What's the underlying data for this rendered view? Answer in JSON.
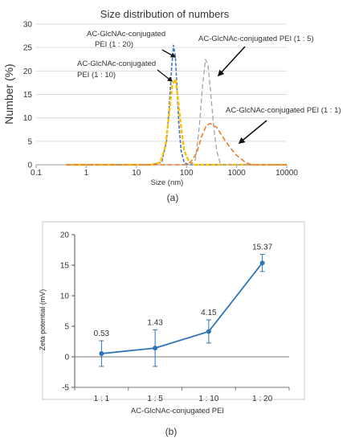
{
  "chart_data": [
    {
      "type": "line",
      "title": "Size distribution of  numbers",
      "xlabel": "Size (nm)",
      "ylabel": "Number (%)",
      "x_scale": "log",
      "xlim": [
        0.1,
        10000
      ],
      "ylim": [
        0,
        30
      ],
      "x_ticks": [
        "0.1",
        "1",
        "10",
        "100",
        "1000",
        "10000"
      ],
      "y_ticks": [
        "0",
        "5",
        "10",
        "15",
        "20",
        "25",
        "30"
      ],
      "grid": "horizontal",
      "series": [
        {
          "name": "AC-GlcNAc-conjugated PEI (1 : 20)",
          "color": "#4472c4",
          "dash": "dashed",
          "x": [
            0.4,
            20,
            32,
            40,
            45,
            50,
            55,
            60,
            65,
            70,
            78,
            90,
            110,
            10000
          ],
          "y": [
            0,
            0,
            0.5,
            5,
            12,
            20,
            25.5,
            23,
            16,
            9,
            3,
            0.5,
            0,
            0
          ]
        },
        {
          "name": "AC-GlcNAc-conjugated PEI (1 : 10)",
          "color": "#ffc000",
          "dash": "dashed",
          "x": [
            0.4,
            20,
            30,
            38,
            45,
            52,
            60,
            68,
            78,
            90,
            110,
            140,
            10000
          ],
          "y": [
            0,
            0,
            0.5,
            4,
            11,
            17,
            18.3,
            14,
            8,
            3,
            0.8,
            0,
            0
          ]
        },
        {
          "name": "AC-GlcNAc-conjugated PEI (1 : 5)",
          "color": "#a5a5a5",
          "dash": "dashed",
          "x": [
            0.4,
            120,
            150,
            180,
            210,
            240,
            270,
            300,
            350,
            400,
            480,
            10000
          ],
          "y": [
            0,
            0,
            1,
            8,
            17,
            22.5,
            21,
            16,
            8,
            3,
            0,
            0
          ]
        },
        {
          "name": "AC-GlcNAc-conjugated PEI (1 : 1)",
          "color": "#ed7d31",
          "dash": "dashed",
          "x": [
            0.4,
            90,
            120,
            160,
            200,
            250,
            300,
            400,
            600,
            800,
            1000,
            1500,
            2000,
            10000
          ],
          "y": [
            0,
            0,
            0.5,
            2.5,
            6,
            8.4,
            8.8,
            8,
            5,
            3.2,
            2,
            0.5,
            0,
            0
          ]
        }
      ],
      "annotations": [
        {
          "lines": [
            "AC-GlcNAc-conjugated",
            "PEI (1 : 20)"
          ]
        },
        {
          "lines": [
            "AC-GlcNAc-conjugated",
            "PEI (1 : 10)"
          ]
        },
        {
          "lines": [
            "AC-GlcNAc-conjugated PEI (1 : 5)"
          ]
        },
        {
          "lines": [
            "AC-GlcNAc-conjugated PEI (1 : 1)"
          ]
        }
      ]
    },
    {
      "type": "line",
      "xlabel": "AC-GlcNAc-conjugated PEI",
      "ylabel": "Zeta potential (mV)",
      "categories": [
        "1 : 1",
        "1 : 5",
        "1 : 10",
        "1 : 20"
      ],
      "ylim": [
        -5,
        20
      ],
      "y_ticks": [
        "-5",
        "0",
        "5",
        "10",
        "15",
        "20"
      ],
      "grid": "none",
      "series": [
        {
          "color": "#2e75b6",
          "values": [
            0.53,
            1.43,
            4.15,
            15.37
          ],
          "error": [
            2.1,
            3.0,
            1.9,
            1.4
          ],
          "labels": [
            "0.53",
            "1.43",
            "4.15",
            "15.37"
          ]
        }
      ]
    }
  ],
  "panel_labels": [
    "(a)",
    "(b)"
  ]
}
